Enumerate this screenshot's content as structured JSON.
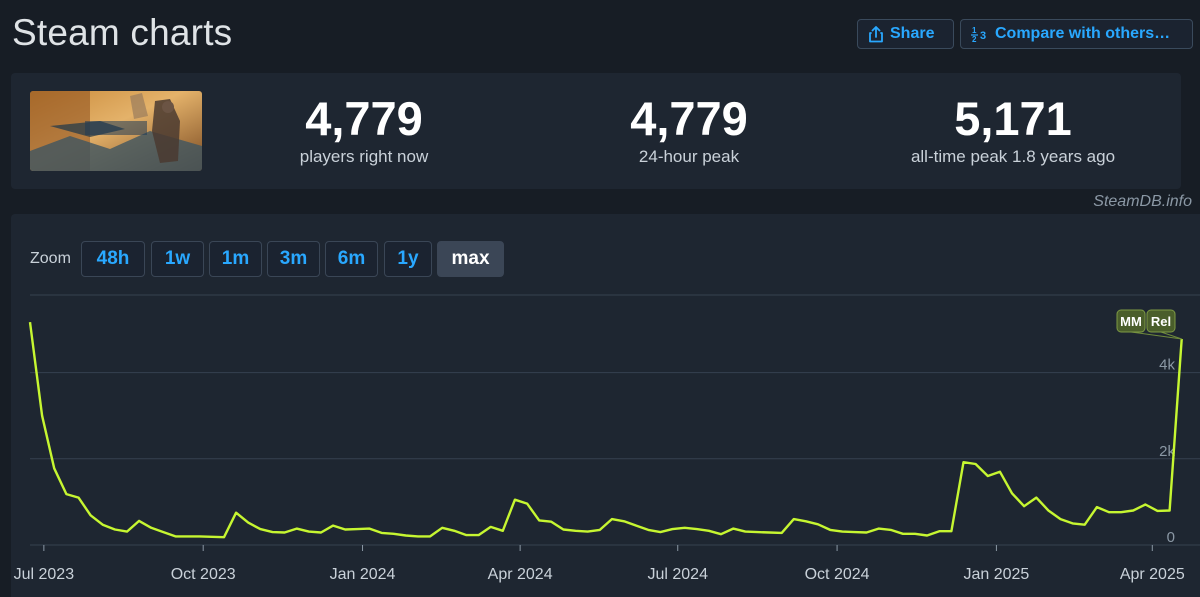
{
  "header": {
    "title": "Steam charts",
    "share_label": "Share",
    "compare_label": "Compare with others…"
  },
  "stats": {
    "current": {
      "value": "4,779",
      "label": "players right now"
    },
    "peak24": {
      "value": "4,779",
      "label": "24-hour peak"
    },
    "alltime": {
      "value": "5,171",
      "label": "all-time peak 1.8 years ago"
    }
  },
  "credit": "SteamDB.info",
  "zoom": {
    "label": "Zoom",
    "options": [
      "48h",
      "1w",
      "1m",
      "3m",
      "6m",
      "1y",
      "max"
    ],
    "selected": "max"
  },
  "colors": {
    "line": "#c6f631",
    "accent": "#29a8ff",
    "grid": "#364150",
    "marker": "#4a5e2b"
  },
  "chart_data": {
    "type": "line",
    "x_axis": "time",
    "x_tick_labels": [
      "Jul 2023",
      "Oct 2023",
      "Jan 2024",
      "Apr 2024",
      "Jul 2024",
      "Oct 2024",
      "Jan 2025",
      "Apr 2025"
    ],
    "y_tick_labels": [
      "0",
      "2k",
      "4k"
    ],
    "ylim": [
      0,
      5800
    ],
    "grid": true,
    "annotations": [
      "MM",
      "Rel"
    ],
    "series": [
      {
        "x": [
          "2023-06-23",
          "2023-06-30",
          "2023-07-07",
          "2023-07-14",
          "2023-07-21",
          "2023-07-28",
          "2023-08-04",
          "2023-08-11",
          "2023-08-18",
          "2023-08-25",
          "2023-09-01",
          "2023-09-08",
          "2023-09-15",
          "2023-09-22",
          "2023-09-29",
          "2023-10-06",
          "2023-10-13",
          "2023-10-20",
          "2023-10-27",
          "2023-11-03",
          "2023-11-10",
          "2023-11-17",
          "2023-11-24",
          "2023-12-01",
          "2023-12-08",
          "2023-12-15",
          "2023-12-22",
          "2023-12-29",
          "2024-01-05",
          "2024-01-12",
          "2024-01-19",
          "2024-01-26",
          "2024-02-02",
          "2024-02-09",
          "2024-02-16",
          "2024-02-23",
          "2024-03-01",
          "2024-03-08",
          "2024-03-15",
          "2024-03-22",
          "2024-03-29",
          "2024-04-05",
          "2024-04-12",
          "2024-04-19",
          "2024-04-26",
          "2024-05-03",
          "2024-05-10",
          "2024-05-17",
          "2024-05-24",
          "2024-05-31",
          "2024-06-07",
          "2024-06-14",
          "2024-06-21",
          "2024-06-28",
          "2024-07-05",
          "2024-07-12",
          "2024-07-19",
          "2024-07-26",
          "2024-08-02",
          "2024-08-09",
          "2024-08-16",
          "2024-08-23",
          "2024-08-30",
          "2024-09-06",
          "2024-09-13",
          "2024-09-20",
          "2024-09-27",
          "2024-10-04",
          "2024-10-11",
          "2024-10-18",
          "2024-10-25",
          "2024-11-01",
          "2024-11-08",
          "2024-11-15",
          "2024-11-22",
          "2024-11-29",
          "2024-12-06",
          "2024-12-13",
          "2024-12-20",
          "2024-12-27",
          "2025-01-03",
          "2025-01-10",
          "2025-01-17",
          "2025-01-24",
          "2025-01-31",
          "2025-02-07",
          "2025-02-14",
          "2025-02-21",
          "2025-02-28",
          "2025-03-07",
          "2025-03-14",
          "2025-03-21",
          "2025-03-28",
          "2025-04-04",
          "2025-04-11",
          "2025-04-18"
        ],
        "values": [
          5171,
          3000,
          1780,
          1180,
          1100,
          690,
          470,
          360,
          310,
          560,
          400,
          300,
          200,
          200,
          200,
          190,
          180,
          750,
          520,
          370,
          300,
          290,
          380,
          310,
          290,
          450,
          360,
          370,
          380,
          280,
          260,
          220,
          200,
          200,
          400,
          330,
          230,
          230,
          420,
          330,
          1050,
          960,
          570,
          540,
          360,
          330,
          310,
          350,
          600,
          550,
          450,
          350,
          300,
          370,
          400,
          370,
          330,
          250,
          380,
          310,
          300,
          290,
          280,
          600,
          550,
          480,
          350,
          310,
          300,
          290,
          380,
          350,
          260,
          260,
          220,
          320,
          320,
          1920,
          1880,
          1600,
          1700,
          1200,
          900,
          1100,
          800,
          600,
          500,
          470,
          880,
          760,
          760,
          800,
          940,
          790,
          800,
          4779
        ]
      }
    ]
  }
}
